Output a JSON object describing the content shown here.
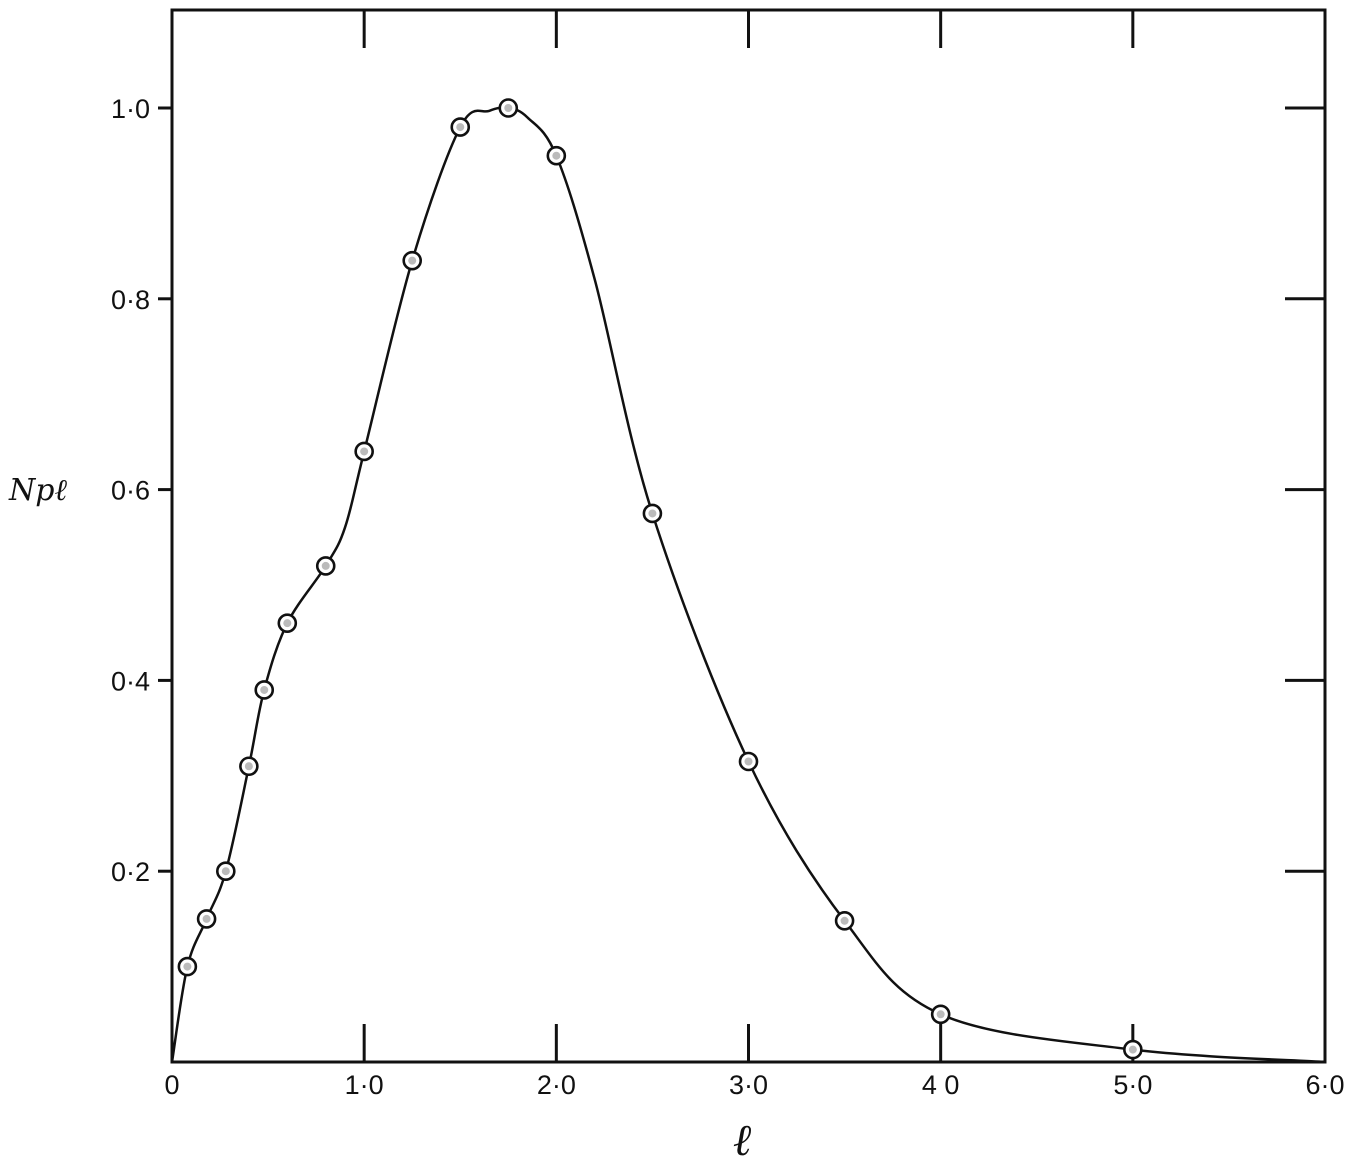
{
  "chart_data": {
    "type": "line",
    "title": "",
    "xlabel": "ℓ",
    "ylabel": "Npℓ",
    "xlim": [
      0,
      6
    ],
    "ylim": [
      0,
      1.1
    ],
    "grid": false,
    "x_ticks": [
      0,
      1,
      2,
      3,
      4,
      5,
      6
    ],
    "x_tick_labels": [
      "0",
      "1·0",
      "2·0",
      "3·0",
      "4 0",
      "5·0",
      "6·0"
    ],
    "y_ticks": [
      0.2,
      0.4,
      0.6,
      0.8,
      1.0
    ],
    "y_tick_labels": [
      "0·2",
      "0·4",
      "0·6",
      "0·8",
      "1·0"
    ],
    "series": [
      {
        "style": "line with open circular markers",
        "x": [
          0.08,
          0.18,
          0.28,
          0.4,
          0.48,
          0.6,
          0.8,
          1.0,
          1.25,
          1.5,
          1.75,
          2.0,
          2.5,
          3.0,
          3.5,
          4.0,
          5.0
        ],
        "y": [
          0.1,
          0.15,
          0.2,
          0.31,
          0.39,
          0.46,
          0.52,
          0.64,
          0.84,
          0.98,
          1.0,
          0.95,
          0.575,
          0.315,
          0.148,
          0.05,
          0.013
        ]
      }
    ],
    "curve": {
      "x": [
        0,
        0.08,
        0.18,
        0.28,
        0.4,
        0.48,
        0.6,
        0.8,
        0.9,
        1.0,
        1.25,
        1.5,
        1.65,
        1.75,
        1.85,
        2.0,
        2.2,
        2.5,
        3.0,
        3.5,
        4.0,
        5.0,
        6.0
      ],
      "y": [
        0,
        0.1,
        0.15,
        0.2,
        0.31,
        0.39,
        0.46,
        0.52,
        0.56,
        0.64,
        0.84,
        0.98,
        0.997,
        1.0,
        0.99,
        0.95,
        0.82,
        0.575,
        0.315,
        0.148,
        0.05,
        0.013,
        0
      ]
    }
  }
}
